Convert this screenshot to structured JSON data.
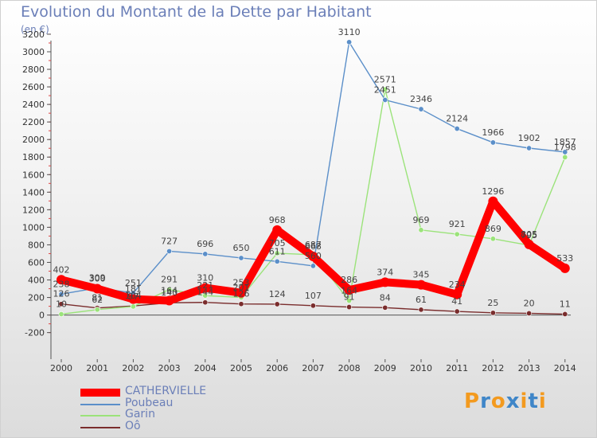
{
  "colors": {
    "title": "#6b7fb8",
    "axis": "#555555"
  },
  "chart_data": {
    "type": "line",
    "title": "Evolution du Montant de la Dette par Habitant",
    "subtitle": "(en €)",
    "x": [
      "2000",
      "2001",
      "2002",
      "2003",
      "2004",
      "2005",
      "2006",
      "2007",
      "2008",
      "2009",
      "2010",
      "2011",
      "2012",
      "2013",
      "2014"
    ],
    "ylim": [
      -200,
      3200
    ],
    "yticks": [
      "-200",
      "0",
      "200",
      "400",
      "600",
      "800",
      "1000",
      "1200",
      "1400",
      "1600",
      "1800",
      "2000",
      "2200",
      "2400",
      "2600",
      "2800",
      "3000",
      "3200"
    ],
    "grid": false,
    "legend_position": "bottom-left",
    "series": [
      {
        "name": "CATHERVIELLE",
        "color": "#ff0000",
        "values": [
          402,
          300,
          181,
          164,
          310,
          253,
          968,
          668,
          286,
          374,
          345,
          234,
          1296,
          805,
          533
        ]
      },
      {
        "name": "Poubeau",
        "color": "#5b8fc9",
        "values": [
          238,
          309,
          251,
          727,
          696,
          650,
          611,
          560,
          3110,
          2451,
          2346,
          2124,
          1966,
          1902,
          1857
        ]
      },
      {
        "name": "Garin",
        "color": "#9be37a",
        "values": [
          10,
          62,
          97,
          291,
          221,
          201,
          705,
          687,
          164,
          2571,
          969,
          921,
          869,
          795,
          1798
        ]
      },
      {
        "name": "Oô",
        "color": "#7a2d2d",
        "values": [
          126,
          81,
          104,
          140,
          144,
          126,
          124,
          107,
          91,
          84,
          61,
          41,
          25,
          20,
          11
        ]
      }
    ]
  },
  "logo": {
    "letters": [
      "P",
      "r",
      "o",
      "x",
      "i",
      "t",
      "i"
    ],
    "colors": [
      "#f39a1f",
      "#3f86c8",
      "#f39a1f",
      "#3f86c8",
      "#f39a1f",
      "#3f86c8",
      "#f39a1f"
    ]
  }
}
